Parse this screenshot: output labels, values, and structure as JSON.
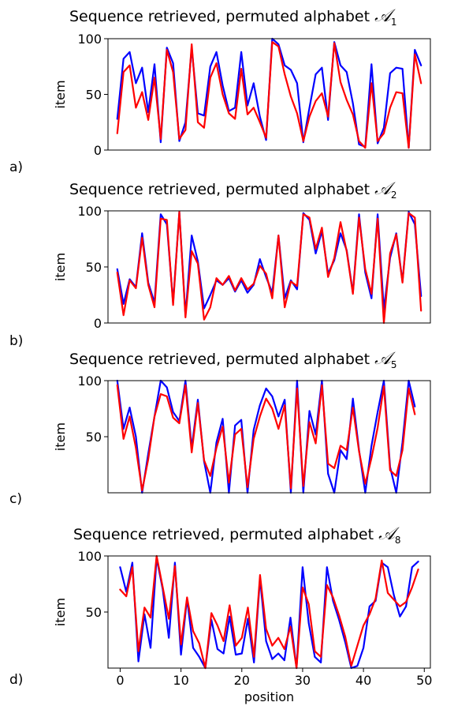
{
  "chart_data": [
    {
      "type": "line",
      "panel_label": "a)",
      "title": "Sequence retrieved, permuted alphabet",
      "title_symbol": "𝒜",
      "title_subscript": "1",
      "ylabel": "item",
      "xlabel": "",
      "xlim": [
        -1.5,
        50.5
      ],
      "ylim": [
        0,
        100
      ],
      "yticks": [
        0,
        50,
        100
      ],
      "xticks": [],
      "series": [
        {
          "color": "#0000ff",
          "values": [
            28,
            82,
            88,
            60,
            74,
            34,
            77,
            7,
            92,
            78,
            8,
            25,
            92,
            33,
            31,
            75,
            88,
            58,
            35,
            38,
            88,
            40,
            60,
            30,
            9,
            100,
            95,
            76,
            72,
            60,
            7,
            38,
            68,
            74,
            27,
            97,
            76,
            70,
            42,
            5,
            3,
            77,
            6,
            20,
            69,
            74,
            73,
            2,
            90,
            76
          ]
        },
        {
          "color": "#ff0000",
          "values": [
            15,
            70,
            76,
            38,
            52,
            27,
            65,
            10,
            90,
            70,
            10,
            18,
            95,
            25,
            20,
            65,
            78,
            50,
            33,
            28,
            73,
            32,
            38,
            25,
            11,
            97,
            93,
            68,
            48,
            33,
            8,
            30,
            44,
            51,
            30,
            96,
            61,
            45,
            32,
            8,
            2,
            60,
            8,
            15,
            38,
            52,
            51,
            2,
            86,
            60
          ]
        }
      ]
    },
    {
      "type": "line",
      "panel_label": "b)",
      "title": "Sequence retrieved, permuted alphabet",
      "title_symbol": "𝒜",
      "title_subscript": "2",
      "ylabel": "item",
      "xlabel": "",
      "xlim": [
        -1.5,
        50.5
      ],
      "ylim": [
        0,
        100
      ],
      "yticks": [
        0,
        50,
        100
      ],
      "xticks": [],
      "series": [
        {
          "color": "#0000ff",
          "values": [
            48,
            17,
            39,
            32,
            80,
            36,
            18,
            97,
            88,
            18,
            99,
            7,
            78,
            55,
            13,
            25,
            38,
            34,
            40,
            28,
            38,
            27,
            34,
            57,
            41,
            27,
            78,
            22,
            38,
            30,
            98,
            92,
            62,
            82,
            44,
            56,
            80,
            65,
            27,
            97,
            45,
            22,
            97,
            12,
            58,
            80,
            37,
            99,
            88,
            24
          ]
        },
        {
          "color": "#ff0000",
          "values": [
            45,
            7,
            38,
            31,
            76,
            34,
            14,
            93,
            92,
            16,
            99,
            5,
            64,
            53,
            3,
            14,
            40,
            34,
            42,
            29,
            40,
            30,
            35,
            51,
            44,
            22,
            78,
            14,
            37,
            33,
            97,
            94,
            66,
            85,
            41,
            58,
            90,
            64,
            26,
            94,
            48,
            26,
            93,
            0,
            62,
            79,
            36,
            98,
            94,
            11
          ]
        }
      ]
    },
    {
      "type": "line",
      "panel_label": "c)",
      "title": "Sequence retrieved, permuted alphabet",
      "title_symbol": "𝒜",
      "title_subscript": "5",
      "ylabel": "item",
      "xlabel": "",
      "xlim": [
        -1.5,
        50.5
      ],
      "ylim": [
        0,
        100
      ],
      "yticks": [
        50,
        100
      ],
      "xticks": [],
      "series": [
        {
          "color": "#0000ff",
          "values": [
            100,
            57,
            76,
            50,
            0,
            35,
            68,
            100,
            94,
            72,
            64,
            100,
            40,
            83,
            28,
            0,
            45,
            66,
            0,
            60,
            65,
            0,
            56,
            78,
            93,
            86,
            68,
            83,
            0,
            100,
            0,
            73,
            52,
            100,
            17,
            0,
            38,
            30,
            84,
            38,
            0,
            42,
            72,
            100,
            23,
            0,
            45,
            100,
            77
          ]
        },
        {
          "color": "#ff0000",
          "values": [
            96,
            48,
            68,
            40,
            2,
            30,
            68,
            88,
            86,
            67,
            62,
            96,
            36,
            80,
            29,
            15,
            40,
            59,
            9,
            52,
            57,
            5,
            48,
            68,
            84,
            75,
            57,
            78,
            4,
            93,
            6,
            63,
            44,
            96,
            26,
            22,
            42,
            38,
            76,
            37,
            8,
            31,
            58,
            95,
            20,
            15,
            38,
            93,
            70
          ]
        }
      ]
    },
    {
      "type": "line",
      "panel_label": "d)",
      "title": "Sequence retrieved, permuted alphabet",
      "title_symbol": "𝒜",
      "title_subscript": "8",
      "ylabel": "item",
      "xlabel": "position",
      "xlim": [
        -2,
        51
      ],
      "ylim": [
        0,
        100
      ],
      "yticks": [
        50,
        100
      ],
      "xticks": [
        0,
        10,
        20,
        30,
        40,
        50
      ],
      "series": [
        {
          "color": "#0000ff",
          "values": [
            90,
            68,
            94,
            6,
            48,
            18,
            98,
            70,
            27,
            94,
            12,
            62,
            18,
            10,
            0,
            43,
            17,
            13,
            46,
            12,
            13,
            44,
            5,
            80,
            24,
            8,
            13,
            7,
            45,
            0,
            90,
            40,
            10,
            5,
            90,
            60,
            43,
            23,
            0,
            2,
            18,
            55,
            60,
            94,
            90,
            65,
            46,
            55,
            90,
            95
          ]
        },
        {
          "color": "#ff0000",
          "values": [
            70,
            64,
            90,
            15,
            54,
            45,
            100,
            72,
            44,
            91,
            21,
            63,
            33,
            22,
            0,
            49,
            38,
            24,
            56,
            20,
            27,
            54,
            10,
            83,
            35,
            20,
            27,
            17,
            37,
            0,
            72,
            57,
            15,
            10,
            74,
            63,
            47,
            28,
            2,
            20,
            38,
            48,
            62,
            96,
            67,
            61,
            55,
            59,
            72,
            88
          ]
        }
      ]
    }
  ]
}
